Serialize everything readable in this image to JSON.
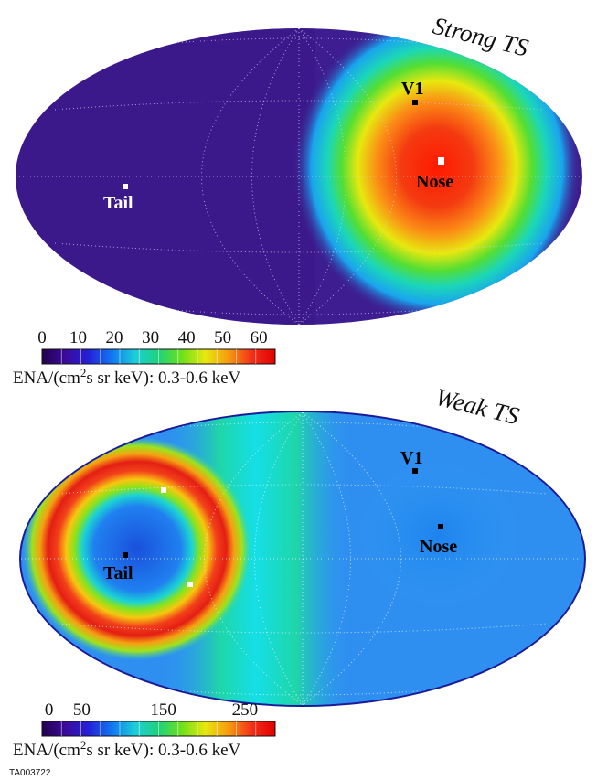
{
  "colormap": [
    "#23004d",
    "#3a0b9a",
    "#2420d8",
    "#1177f2",
    "#1ccfd8",
    "#1fd27a",
    "#6fe01a",
    "#e7e80f",
    "#f79a10",
    "#f3301a",
    "#e00000"
  ],
  "maps": [
    {
      "title": "Strong TS",
      "background": "#3d1d8f",
      "markers": [
        {
          "label": "V1",
          "color": "#000000",
          "label_color": "#000000"
        },
        {
          "label": "Nose",
          "color": "#ffffff",
          "label_color": "#000000"
        },
        {
          "label": "Tail",
          "color": "#ffffff",
          "label_color": "#ffffff"
        }
      ],
      "colorbar": {
        "ticks": [
          "0",
          "10",
          "20",
          "30",
          "40",
          "50",
          "60"
        ],
        "caption_main": "ENA/(cm",
        "caption_sup": "2",
        "caption_rest": "s sr keV): 0.3-0.6 keV"
      }
    },
    {
      "title": "Weak TS",
      "background": "#2f8ff0",
      "markers": [
        {
          "label": "V1",
          "color": "#000000",
          "label_color": "#000000"
        },
        {
          "label": "Nose",
          "color": "#000000",
          "label_color": "#000000"
        },
        {
          "label": "Tail",
          "color": "#000000",
          "label_color": "#000000"
        }
      ],
      "colorbar": {
        "ticks": [
          "0",
          "50",
          "150",
          "250"
        ],
        "caption_main": "ENA/(cm",
        "caption_sup": "2",
        "caption_rest": "s sr keV): 0.3-0.6 keV"
      }
    }
  ],
  "figure_id": "TA003722"
}
